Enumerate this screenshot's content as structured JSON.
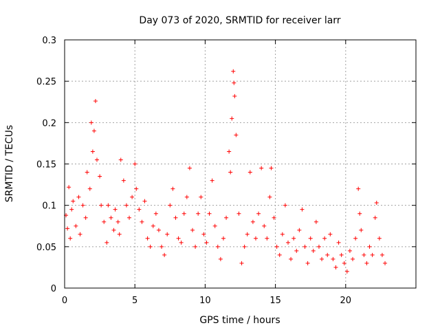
{
  "chart_data": {
    "type": "scatter",
    "title": "Day 073 of 2020, SRMTID for receiver larr",
    "xlabel": "GPS time / hours",
    "ylabel": "SRMTID / TECUs",
    "xlim": [
      0,
      25
    ],
    "ylim": [
      0,
      0.3
    ],
    "x_ticks": [
      0,
      5,
      10,
      15,
      20
    ],
    "x_tick_labels": [
      "0",
      "5",
      "10",
      "15",
      "20"
    ],
    "y_ticks": [
      0,
      0.05,
      0.1,
      0.15,
      0.2,
      0.25,
      0.3
    ],
    "y_tick_labels": [
      "0",
      "0.05",
      "0.1",
      "0.15",
      "0.2",
      "0.25",
      "0.3"
    ],
    "grid": true,
    "marker": "+",
    "color": "#ff0000",
    "series": [
      {
        "name": "SRMTID",
        "points": [
          [
            0.1,
            0.088
          ],
          [
            0.2,
            0.072
          ],
          [
            0.3,
            0.122
          ],
          [
            0.4,
            0.06
          ],
          [
            0.5,
            0.095
          ],
          [
            0.6,
            0.105
          ],
          [
            0.8,
            0.075
          ],
          [
            1.0,
            0.11
          ],
          [
            1.1,
            0.065
          ],
          [
            1.3,
            0.1
          ],
          [
            1.5,
            0.085
          ],
          [
            1.6,
            0.14
          ],
          [
            1.8,
            0.12
          ],
          [
            1.9,
            0.2
          ],
          [
            2.0,
            0.165
          ],
          [
            2.1,
            0.19
          ],
          [
            2.2,
            0.226
          ],
          [
            2.3,
            0.155
          ],
          [
            2.5,
            0.135
          ],
          [
            2.6,
            0.1
          ],
          [
            2.8,
            0.08
          ],
          [
            3.0,
            0.055
          ],
          [
            3.1,
            0.1
          ],
          [
            3.3,
            0.085
          ],
          [
            3.5,
            0.07
          ],
          [
            3.6,
            0.095
          ],
          [
            3.8,
            0.08
          ],
          [
            3.9,
            0.065
          ],
          [
            4.0,
            0.155
          ],
          [
            4.2,
            0.13
          ],
          [
            4.4,
            0.1
          ],
          [
            4.6,
            0.085
          ],
          [
            4.8,
            0.11
          ],
          [
            5.0,
            0.15
          ],
          [
            5.1,
            0.12
          ],
          [
            5.3,
            0.095
          ],
          [
            5.5,
            0.08
          ],
          [
            5.7,
            0.105
          ],
          [
            5.9,
            0.06
          ],
          [
            6.1,
            0.05
          ],
          [
            6.3,
            0.075
          ],
          [
            6.5,
            0.09
          ],
          [
            6.7,
            0.07
          ],
          [
            6.9,
            0.05
          ],
          [
            7.1,
            0.04
          ],
          [
            7.3,
            0.065
          ],
          [
            7.5,
            0.1
          ],
          [
            7.7,
            0.12
          ],
          [
            7.9,
            0.085
          ],
          [
            8.1,
            0.06
          ],
          [
            8.3,
            0.055
          ],
          [
            8.5,
            0.09
          ],
          [
            8.7,
            0.11
          ],
          [
            8.9,
            0.145
          ],
          [
            9.1,
            0.07
          ],
          [
            9.3,
            0.05
          ],
          [
            9.5,
            0.09
          ],
          [
            9.7,
            0.11
          ],
          [
            9.9,
            0.065
          ],
          [
            10.1,
            0.055
          ],
          [
            10.3,
            0.09
          ],
          [
            10.5,
            0.13
          ],
          [
            10.7,
            0.075
          ],
          [
            10.9,
            0.05
          ],
          [
            11.1,
            0.035
          ],
          [
            11.3,
            0.06
          ],
          [
            11.5,
            0.085
          ],
          [
            11.7,
            0.165
          ],
          [
            11.8,
            0.14
          ],
          [
            11.9,
            0.205
          ],
          [
            12.0,
            0.262
          ],
          [
            12.05,
            0.248
          ],
          [
            12.1,
            0.232
          ],
          [
            12.2,
            0.185
          ],
          [
            12.4,
            0.09
          ],
          [
            12.6,
            0.03
          ],
          [
            12.8,
            0.05
          ],
          [
            13.0,
            0.065
          ],
          [
            13.2,
            0.14
          ],
          [
            13.4,
            0.08
          ],
          [
            13.6,
            0.06
          ],
          [
            13.8,
            0.09
          ],
          [
            14.0,
            0.145
          ],
          [
            14.2,
            0.075
          ],
          [
            14.4,
            0.06
          ],
          [
            14.6,
            0.11
          ],
          [
            14.7,
            0.145
          ],
          [
            14.9,
            0.085
          ],
          [
            15.1,
            0.05
          ],
          [
            15.3,
            0.04
          ],
          [
            15.5,
            0.065
          ],
          [
            15.7,
            0.1
          ],
          [
            15.9,
            0.055
          ],
          [
            16.1,
            0.035
          ],
          [
            16.3,
            0.06
          ],
          [
            16.5,
            0.045
          ],
          [
            16.7,
            0.07
          ],
          [
            16.9,
            0.095
          ],
          [
            17.1,
            0.05
          ],
          [
            17.3,
            0.03
          ],
          [
            17.5,
            0.06
          ],
          [
            17.7,
            0.045
          ],
          [
            17.9,
            0.08
          ],
          [
            18.1,
            0.05
          ],
          [
            18.3,
            0.035
          ],
          [
            18.5,
            0.06
          ],
          [
            18.7,
            0.04
          ],
          [
            18.9,
            0.065
          ],
          [
            19.1,
            0.035
          ],
          [
            19.3,
            0.025
          ],
          [
            19.5,
            0.055
          ],
          [
            19.7,
            0.04
          ],
          [
            19.9,
            0.03
          ],
          [
            20.1,
            0.02
          ],
          [
            20.3,
            0.045
          ],
          [
            20.5,
            0.035
          ],
          [
            20.7,
            0.06
          ],
          [
            20.9,
            0.12
          ],
          [
            21.0,
            0.09
          ],
          [
            21.1,
            0.07
          ],
          [
            21.3,
            0.04
          ],
          [
            21.5,
            0.03
          ],
          [
            21.7,
            0.05
          ],
          [
            21.9,
            0.04
          ],
          [
            22.1,
            0.085
          ],
          [
            22.2,
            0.103
          ],
          [
            22.4,
            0.06
          ],
          [
            22.6,
            0.04
          ],
          [
            22.8,
            0.03
          ]
        ]
      }
    ]
  }
}
